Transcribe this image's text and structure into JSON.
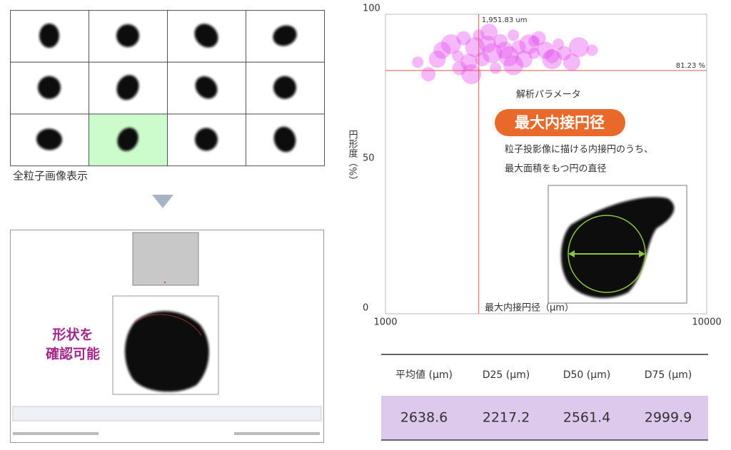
{
  "grid_caption": "全粒子画像表示",
  "software_note": [
    "形状を",
    "確認可能"
  ],
  "chart_data": {
    "type": "scatter",
    "xlabel": "最大内接円径（μm）",
    "ylabel": "円形度（%）",
    "xlim": [
      1000,
      10000
    ],
    "ylim": [
      0,
      100
    ],
    "xticks": [
      1000,
      10000
    ],
    "yticks": [
      0,
      50,
      100
    ],
    "log_x": true,
    "color": "#e64ff0",
    "x": [
      1260,
      1360,
      1500,
      1600,
      1680,
      1750,
      1820,
      1900,
      1950,
      2000,
      2080,
      2150,
      2200,
      2280,
      2350,
      2420,
      2500,
      2600,
      2700,
      2800,
      2900,
      3000,
      3150,
      3300,
      3450,
      3600,
      3800,
      4000,
      4400,
      1700,
      2100,
      2500,
      2900,
      3300,
      1450,
      1850
    ],
    "y": [
      84,
      80,
      88,
      90,
      86,
      92,
      84,
      89,
      93,
      85,
      90,
      87,
      82,
      91,
      88,
      86,
      93,
      89,
      85,
      90,
      87,
      92,
      88,
      85,
      90,
      87,
      84,
      89,
      88,
      82,
      94,
      83,
      91,
      86,
      85,
      80
    ],
    "crosshair_x": {
      "value": 1951.83,
      "label": "1,951.83 um"
    },
    "crosshair_y": {
      "value": 81.23,
      "label": "81.23 %"
    }
  },
  "definition": {
    "heading": "解析パラメータ",
    "term": "最大内接円径",
    "description": [
      "粒子投影像に描ける内接円のうち、",
      "最大面積をもつ円の直径"
    ]
  },
  "table": {
    "header": [
      "平均値 (μm)",
      "D25 (μm)",
      "D50 (μm)",
      "D75 (μm)"
    ],
    "rows": [
      [
        2638.6,
        2217.2,
        2561.4,
        2999.9
      ]
    ]
  }
}
